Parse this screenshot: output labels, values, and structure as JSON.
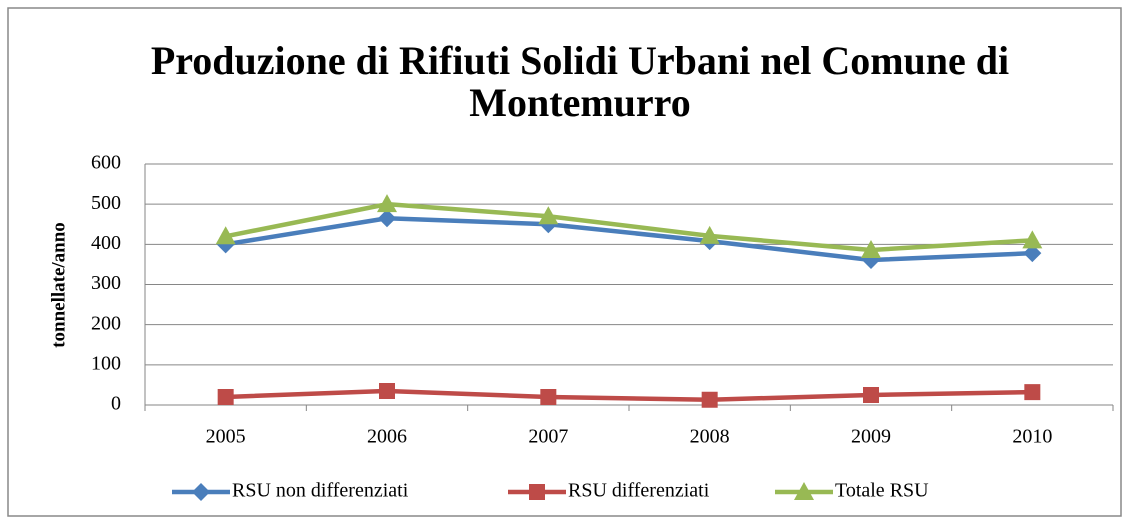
{
  "chart_data": {
    "type": "line",
    "title": "Produzione di Rifiuti Solidi Urbani nel Comune di Montemurro",
    "ylabel": "tonnellate/anno",
    "categories": [
      "2005",
      "2006",
      "2007",
      "2008",
      "2009",
      "2010"
    ],
    "series": [
      {
        "name": "RSU non differenziati",
        "color": "#4a7ebb",
        "marker": "diamond",
        "values": [
          400,
          465,
          450,
          408,
          361,
          378
        ]
      },
      {
        "name": "RSU differenziati",
        "color": "#be4b48",
        "marker": "square",
        "values": [
          20,
          35,
          20,
          13,
          25,
          32
        ]
      },
      {
        "name": "Totale RSU",
        "color": "#98b954",
        "marker": "triangle",
        "values": [
          420,
          500,
          470,
          421,
          386,
          410
        ]
      }
    ],
    "ylim": [
      0,
      600
    ],
    "yticks": [
      0,
      100,
      200,
      300,
      400,
      500,
      600
    ],
    "grid": true,
    "legend": "bottom"
  }
}
